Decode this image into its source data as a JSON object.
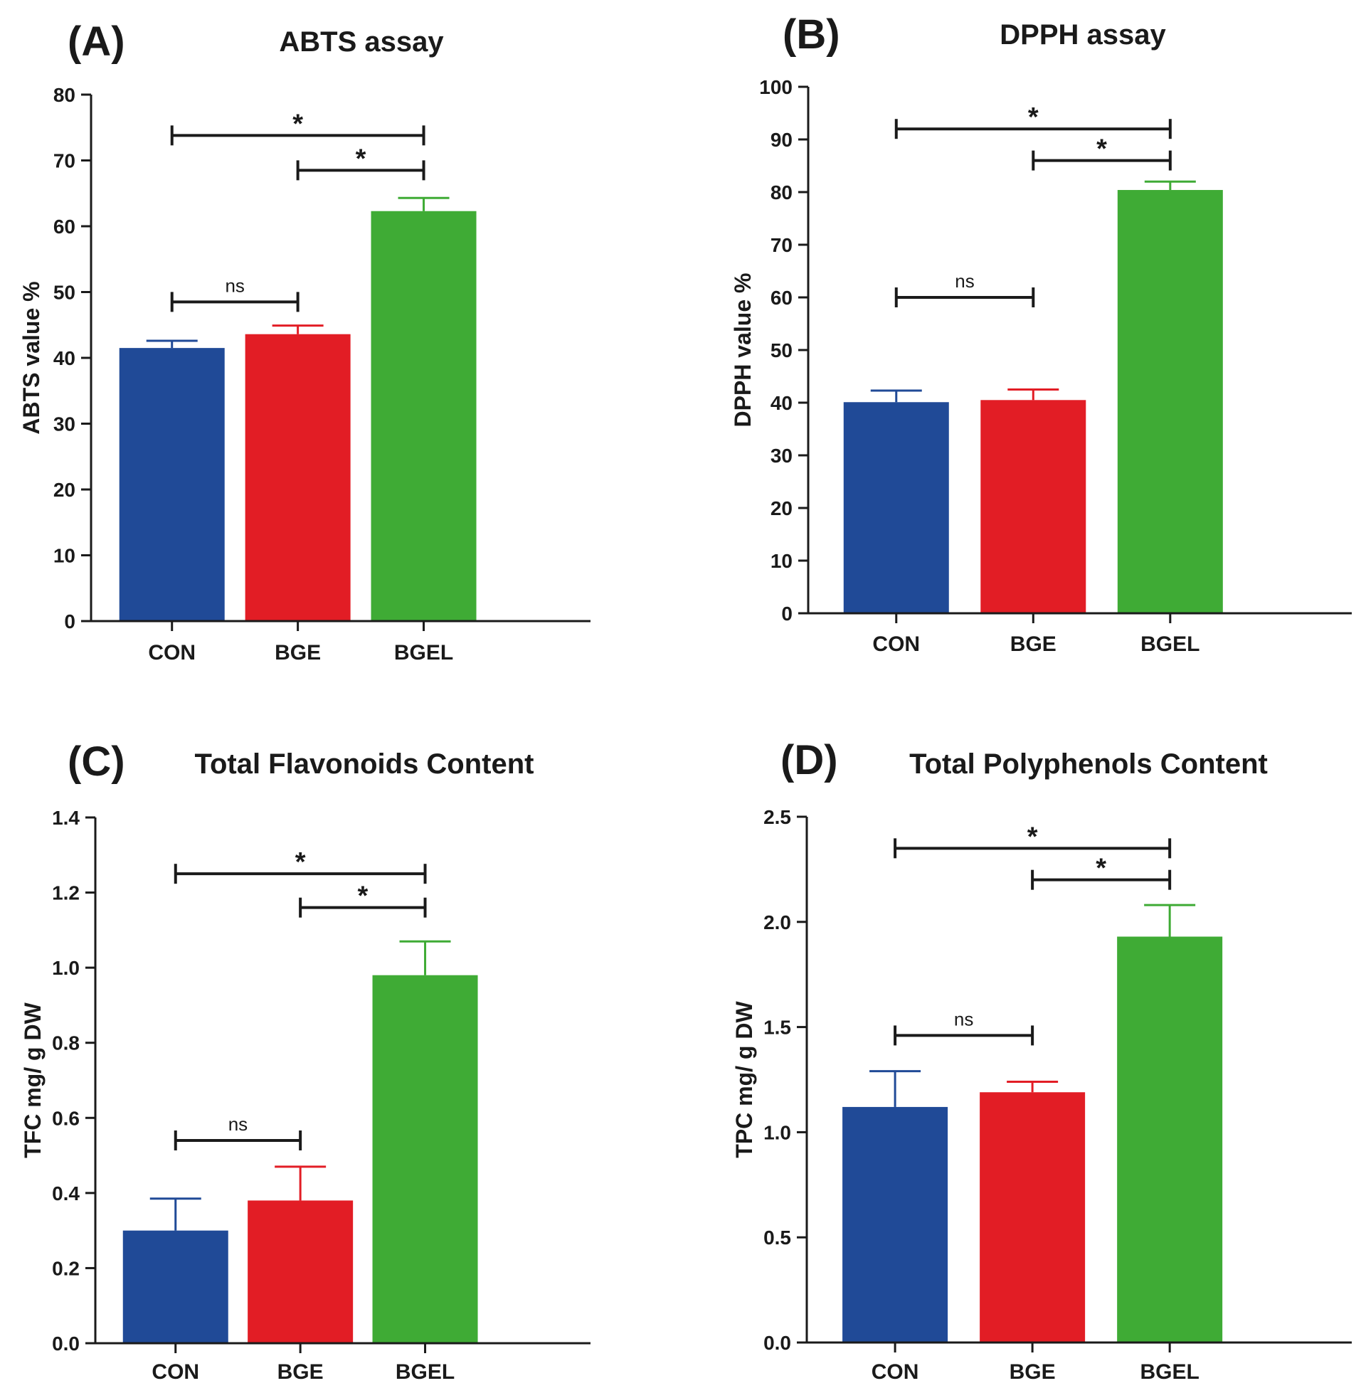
{
  "colors": {
    "CON": "#204a97",
    "BGE": "#e21d25",
    "BGEL": "#3fab35",
    "axis": "#1a1a1a"
  },
  "chart_data": [
    {
      "type": "bar",
      "panel": "(A)",
      "title": "ABTS assay",
      "ylabel": "ABTS value %",
      "xlabel": "",
      "categories": [
        "CON",
        "BGE",
        "BGEL"
      ],
      "values": [
        41.5,
        43.6,
        62.3
      ],
      "errors": [
        1.1,
        1.3,
        2.0
      ],
      "ylim": [
        0,
        80
      ],
      "yticks": [
        "0",
        "10",
        "20",
        "30",
        "40",
        "50",
        "60",
        "70",
        "80"
      ],
      "yticks_values": [
        0,
        10,
        20,
        30,
        40,
        50,
        60,
        70,
        80
      ],
      "comparisons": [
        {
          "from": "CON",
          "to": "BGE",
          "label": "ns",
          "at": 48.5
        },
        {
          "from": "BGE",
          "to": "BGEL",
          "label": "*",
          "at": 68.5
        },
        {
          "from": "CON",
          "to": "BGEL",
          "label": "*",
          "at": 73.8
        }
      ]
    },
    {
      "type": "bar",
      "panel": "(B)",
      "title": "DPPH assay",
      "ylabel": "DPPH value %",
      "xlabel": "",
      "categories": [
        "CON",
        "BGE",
        "BGEL"
      ],
      "values": [
        40.1,
        40.5,
        80.4
      ],
      "errors": [
        2.2,
        2.0,
        1.6
      ],
      "ylim": [
        0,
        100
      ],
      "yticks": [
        "0",
        "10",
        "20",
        "30",
        "40",
        "50",
        "60",
        "70",
        "80",
        "90",
        "100"
      ],
      "yticks_values": [
        0,
        10,
        20,
        30,
        40,
        50,
        60,
        70,
        80,
        90,
        100
      ],
      "comparisons": [
        {
          "from": "CON",
          "to": "BGE",
          "label": "ns",
          "at": 60
        },
        {
          "from": "BGE",
          "to": "BGEL",
          "label": "*",
          "at": 86
        },
        {
          "from": "CON",
          "to": "BGEL",
          "label": "*",
          "at": 92
        }
      ]
    },
    {
      "type": "bar",
      "panel": "(C)",
      "title": "Total Flavonoids Content",
      "ylabel": "TFC mg/ g DW",
      "xlabel": "",
      "categories": [
        "CON",
        "BGE",
        "BGEL"
      ],
      "values": [
        0.3,
        0.38,
        0.98
      ],
      "errors": [
        0.085,
        0.09,
        0.09
      ],
      "ylim": [
        0,
        1.4
      ],
      "yticks": [
        "0.0",
        "0.2",
        "0.4",
        "0.6",
        "0.8",
        "1.0",
        "1.2",
        "1.4"
      ],
      "yticks_values": [
        0,
        0.2,
        0.4,
        0.6,
        0.8,
        1.0,
        1.2,
        1.4
      ],
      "comparisons": [
        {
          "from": "CON",
          "to": "BGE",
          "label": "ns",
          "at": 0.54
        },
        {
          "from": "BGE",
          "to": "BGEL",
          "label": "*",
          "at": 1.16
        },
        {
          "from": "CON",
          "to": "BGEL",
          "label": "*",
          "at": 1.25
        }
      ]
    },
    {
      "type": "bar",
      "panel": "(D)",
      "title": "Total Polyphenols Content",
      "ylabel": "TPC mg/ g DW",
      "xlabel": "",
      "categories": [
        "CON",
        "BGE",
        "BGEL"
      ],
      "values": [
        1.12,
        1.19,
        1.93
      ],
      "errors": [
        0.17,
        0.05,
        0.15
      ],
      "ylim": [
        0,
        2.5
      ],
      "yticks": [
        "0.0",
        "0.5",
        "1.0",
        "1.5",
        "2.0",
        "2.5"
      ],
      "yticks_values": [
        0,
        0.5,
        1.0,
        1.5,
        2.0,
        2.5
      ],
      "comparisons": [
        {
          "from": "CON",
          "to": "BGE",
          "label": "ns",
          "at": 1.46
        },
        {
          "from": "BGE",
          "to": "BGEL",
          "label": "*",
          "at": 2.2
        },
        {
          "from": "CON",
          "to": "BGEL",
          "label": "*",
          "at": 2.35
        }
      ]
    }
  ]
}
